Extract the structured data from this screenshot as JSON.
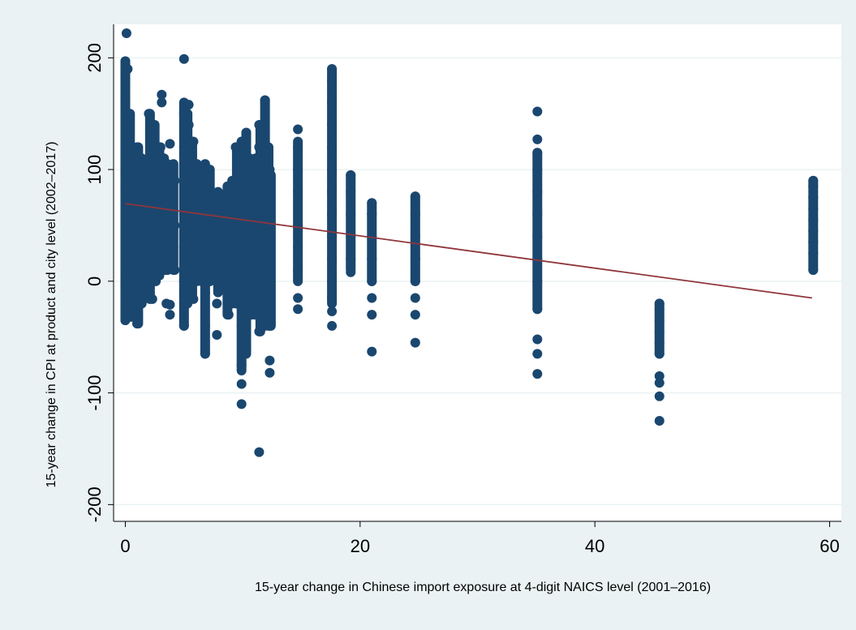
{
  "chart_data": {
    "type": "scatter",
    "xlabel": "15-year change in Chinese import exposure at 4-digit NAICS level (2001–2016)",
    "ylabel": "15-year change in CPI at product and city level (2002–2017)",
    "xlim": [
      -1,
      61
    ],
    "ylim": [
      -215,
      230
    ],
    "x_ticks": [
      0,
      20,
      40,
      60
    ],
    "x_tick_labels": [
      "0",
      "20",
      "40",
      "60"
    ],
    "y_ticks": [
      -200,
      -100,
      0,
      100,
      200
    ],
    "y_tick_labels": [
      "-200",
      "-100",
      "0",
      "100",
      "200"
    ],
    "grid": "horizontal",
    "marker_color": "#1a476f",
    "fit_color": "#90353b",
    "plot_background": "#ffffff",
    "figure_background": "#eaf2f3",
    "fit_line": {
      "x": [
        0,
        58.5
      ],
      "y": [
        69.5,
        -15
      ]
    },
    "series": [
      {
        "points": [
          [
            0,
            -35
          ],
          [
            0,
            -20
          ],
          [
            0,
            0
          ],
          [
            0,
            20
          ],
          [
            0,
            40
          ],
          [
            0,
            60
          ],
          [
            0,
            80
          ],
          [
            0,
            100
          ],
          [
            0,
            120
          ],
          [
            0,
            140
          ],
          [
            0,
            160
          ],
          [
            0,
            180
          ],
          [
            0,
            197
          ],
          [
            0.1,
            222
          ],
          [
            0.2,
            190
          ],
          [
            0.3,
            150
          ],
          [
            0.5,
            -32
          ],
          [
            0.5,
            0
          ],
          [
            0.5,
            50
          ],
          [
            0.5,
            100
          ],
          [
            0.5,
            120
          ],
          [
            0.8,
            -25
          ],
          [
            0.8,
            10
          ],
          [
            0.8,
            60
          ],
          [
            0.8,
            105
          ],
          [
            1,
            -38
          ],
          [
            1,
            -10
          ],
          [
            1,
            30
          ],
          [
            1,
            70
          ],
          [
            1,
            120
          ],
          [
            1.3,
            -20
          ],
          [
            1.3,
            20
          ],
          [
            1.3,
            60
          ],
          [
            1.3,
            110
          ],
          [
            2,
            -5
          ],
          [
            2,
            30
          ],
          [
            2,
            70
          ],
          [
            2,
            110
          ],
          [
            2,
            150
          ],
          [
            2.3,
            -16
          ],
          [
            2.3,
            20
          ],
          [
            2.3,
            60
          ],
          [
            2.3,
            100
          ],
          [
            2.3,
            140
          ],
          [
            2.6,
            0
          ],
          [
            2.6,
            40
          ],
          [
            2.6,
            80
          ],
          [
            2.6,
            120
          ],
          [
            3,
            10
          ],
          [
            3,
            50
          ],
          [
            3,
            90
          ],
          [
            3,
            120
          ],
          [
            3.1,
            160
          ],
          [
            3.1,
            167
          ],
          [
            3.5,
            -20
          ],
          [
            3.5,
            10
          ],
          [
            3.5,
            50
          ],
          [
            3.5,
            90
          ],
          [
            3.8,
            -21
          ],
          [
            3.8,
            -30
          ],
          [
            3.8,
            20
          ],
          [
            3.8,
            60
          ],
          [
            3.8,
            100
          ],
          [
            3.8,
            123
          ],
          [
            4.2,
            10
          ],
          [
            4.2,
            50
          ],
          [
            4.2,
            90
          ],
          [
            5,
            -40
          ],
          [
            5,
            -20
          ],
          [
            5,
            0
          ],
          [
            5,
            30
          ],
          [
            5,
            60
          ],
          [
            5,
            90
          ],
          [
            5,
            120
          ],
          [
            5,
            150
          ],
          [
            5,
            199
          ],
          [
            5.4,
            -15
          ],
          [
            5.4,
            20
          ],
          [
            5.4,
            60
          ],
          [
            5.4,
            100
          ],
          [
            5.4,
            140
          ],
          [
            5.4,
            158
          ],
          [
            5.8,
            -16
          ],
          [
            5.8,
            20
          ],
          [
            5.8,
            60
          ],
          [
            5.8,
            100
          ],
          [
            5.8,
            125
          ],
          [
            6.2,
            10
          ],
          [
            6.2,
            50
          ],
          [
            6.2,
            90
          ],
          [
            6.8,
            -65
          ],
          [
            6.8,
            -40
          ],
          [
            6.8,
            -10
          ],
          [
            6.8,
            20
          ],
          [
            6.8,
            60
          ],
          [
            6.8,
            100
          ],
          [
            7.2,
            0
          ],
          [
            7.2,
            40
          ],
          [
            7.2,
            80
          ],
          [
            7.8,
            -48
          ],
          [
            7.8,
            -20
          ],
          [
            8.2,
            0
          ],
          [
            8.2,
            40
          ],
          [
            8.2,
            75
          ],
          [
            8.8,
            -30
          ],
          [
            8.8,
            10
          ],
          [
            8.8,
            50
          ],
          [
            8.8,
            85
          ],
          [
            9.4,
            -20
          ],
          [
            9.4,
            20
          ],
          [
            9.4,
            60
          ],
          [
            9.4,
            120
          ],
          [
            9.9,
            -110
          ],
          [
            9.9,
            -92
          ],
          [
            9.9,
            -75
          ],
          [
            9.9,
            -40
          ],
          [
            9.9,
            0
          ],
          [
            9.9,
            40
          ],
          [
            9.9,
            80
          ],
          [
            9.9,
            125
          ],
          [
            10.3,
            -60
          ],
          [
            10.3,
            -20
          ],
          [
            10.3,
            20
          ],
          [
            10.3,
            60
          ],
          [
            10.3,
            100
          ],
          [
            10.3,
            133
          ],
          [
            10.8,
            -30
          ],
          [
            10.8,
            10
          ],
          [
            10.8,
            50
          ],
          [
            10.8,
            90
          ],
          [
            11.4,
            -153
          ],
          [
            11.4,
            -45
          ],
          [
            11.4,
            0
          ],
          [
            11.4,
            40
          ],
          [
            11.4,
            80
          ],
          [
            11.4,
            120
          ],
          [
            11.4,
            140
          ],
          [
            11.9,
            -30
          ],
          [
            11.9,
            10
          ],
          [
            11.9,
            60
          ],
          [
            11.9,
            110
          ],
          [
            11.9,
            162
          ],
          [
            12.3,
            -82
          ],
          [
            12.3,
            -71
          ],
          [
            12.3,
            -40
          ],
          [
            12.3,
            0
          ],
          [
            12.3,
            50
          ],
          [
            12.3,
            100
          ],
          [
            14.7,
            -25
          ],
          [
            14.7,
            -15
          ],
          [
            14.7,
            10
          ],
          [
            14.7,
            30
          ],
          [
            14.7,
            50
          ],
          [
            14.7,
            80
          ],
          [
            14.7,
            100
          ],
          [
            14.7,
            120
          ],
          [
            14.7,
            136
          ],
          [
            17.6,
            -40
          ],
          [
            17.6,
            -27
          ],
          [
            17.6,
            -15
          ],
          [
            17.6,
            0
          ],
          [
            17.6,
            20
          ],
          [
            17.6,
            40
          ],
          [
            17.6,
            60
          ],
          [
            17.6,
            80
          ],
          [
            17.6,
            100
          ],
          [
            17.6,
            120
          ],
          [
            17.6,
            140
          ],
          [
            17.6,
            160
          ],
          [
            17.6,
            180
          ],
          [
            17.6,
            190
          ],
          [
            19.2,
            8
          ],
          [
            19.2,
            20
          ],
          [
            19.2,
            40
          ],
          [
            19.2,
            60
          ],
          [
            19.2,
            80
          ],
          [
            19.2,
            95
          ],
          [
            21,
            -63
          ],
          [
            21,
            -30
          ],
          [
            21,
            -15
          ],
          [
            21,
            0
          ],
          [
            21,
            20
          ],
          [
            21,
            40
          ],
          [
            21,
            60
          ],
          [
            21,
            70
          ],
          [
            24.7,
            -55
          ],
          [
            24.7,
            -30
          ],
          [
            24.7,
            -15
          ],
          [
            24.7,
            0
          ],
          [
            24.7,
            20
          ],
          [
            24.7,
            40
          ],
          [
            24.7,
            60
          ],
          [
            24.7,
            76
          ],
          [
            35.1,
            -83
          ],
          [
            35.1,
            -65
          ],
          [
            35.1,
            -52
          ],
          [
            35.1,
            -25
          ],
          [
            35.1,
            0
          ],
          [
            35.1,
            20
          ],
          [
            35.1,
            40
          ],
          [
            35.1,
            60
          ],
          [
            35.1,
            80
          ],
          [
            35.1,
            100
          ],
          [
            35.1,
            115
          ],
          [
            35.1,
            127
          ],
          [
            35.1,
            152
          ],
          [
            45.5,
            -125
          ],
          [
            45.5,
            -103
          ],
          [
            45.5,
            -91
          ],
          [
            45.5,
            -85
          ],
          [
            45.5,
            -65
          ],
          [
            45.5,
            -55
          ],
          [
            45.5,
            -45
          ],
          [
            45.5,
            -35
          ],
          [
            45.5,
            -25
          ],
          [
            45.5,
            -20
          ],
          [
            58.6,
            10
          ],
          [
            58.6,
            25
          ],
          [
            58.6,
            35
          ],
          [
            58.6,
            45
          ],
          [
            58.6,
            55
          ],
          [
            58.6,
            65
          ],
          [
            58.6,
            75
          ],
          [
            58.6,
            85
          ],
          [
            58.6,
            90
          ]
        ],
        "segments": [
          [
            0,
            -35,
            197
          ],
          [
            0.4,
            -30,
            150
          ],
          [
            0.8,
            -30,
            115
          ],
          [
            1.1,
            -38,
            120
          ],
          [
            1.4,
            -20,
            110
          ],
          [
            2.1,
            -16,
            150
          ],
          [
            2.5,
            0,
            140
          ],
          [
            2.9,
            5,
            120
          ],
          [
            3.3,
            10,
            110
          ],
          [
            3.6,
            10,
            105
          ],
          [
            4.1,
            10,
            105
          ],
          [
            5,
            -40,
            160
          ],
          [
            5.3,
            -20,
            150
          ],
          [
            5.7,
            -15,
            125
          ],
          [
            6.1,
            0,
            105
          ],
          [
            6.5,
            0,
            100
          ],
          [
            6.8,
            -65,
            105
          ],
          [
            7.2,
            0,
            100
          ],
          [
            7.9,
            -10,
            80
          ],
          [
            8.3,
            0,
            75
          ],
          [
            8.7,
            -30,
            85
          ],
          [
            9.1,
            -20,
            90
          ],
          [
            9.5,
            -20,
            120
          ],
          [
            9.9,
            -80,
            125
          ],
          [
            10.3,
            -65,
            133
          ],
          [
            10.6,
            -30,
            110
          ],
          [
            11.1,
            -30,
            110
          ],
          [
            11.5,
            -45,
            140
          ],
          [
            11.9,
            -40,
            162
          ],
          [
            12.2,
            -40,
            120
          ],
          [
            12.4,
            -40,
            95
          ],
          [
            14.7,
            0,
            125
          ],
          [
            17.6,
            -20,
            190
          ],
          [
            19.2,
            10,
            95
          ],
          [
            21,
            0,
            70
          ],
          [
            24.7,
            0,
            75
          ],
          [
            35.1,
            -25,
            115
          ],
          [
            45.5,
            -65,
            -20
          ],
          [
            58.6,
            10,
            90
          ]
        ]
      }
    ]
  }
}
